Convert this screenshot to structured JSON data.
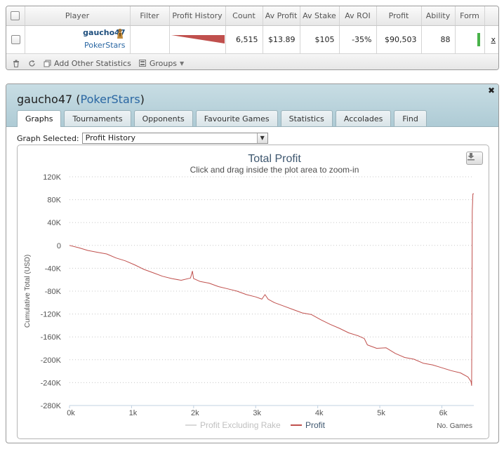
{
  "table": {
    "headers": [
      "Player",
      "Filter",
      "Profit History",
      "Count",
      "Av Profit",
      "Av Stake",
      "Av ROI",
      "Profit",
      "Ability",
      "Form"
    ],
    "row": {
      "player": "gaucho47",
      "site": "PokerStars",
      "count": "6,515",
      "av_profit": "$13.89",
      "av_stake": "$105",
      "av_roi": "-35%",
      "profit": "$90,503",
      "ability": "88",
      "remove": "x"
    }
  },
  "toolbar": {
    "add_stats_label": "Add Other Statistics",
    "groups_label": "Groups"
  },
  "panel": {
    "player": "gaucho47",
    "site": "PokerStars",
    "tabs": [
      "Graphs",
      "Tournaments",
      "Opponents",
      "Favourite Games",
      "Statistics",
      "Accolades",
      "Find"
    ],
    "active_tab": "Graphs",
    "graph_selected_label": "Graph Selected:",
    "graph_selected_value": "Profit History"
  },
  "colors": {
    "profit_line": "#c0504d",
    "excl_rake_line": "#d9d9d9",
    "form_bar": "#49b24a"
  },
  "chart_data": {
    "type": "line",
    "title": "Total Profit",
    "subtitle": "Click and drag inside the plot area to zoom-in",
    "ylabel": "Cumulative Total (USD)",
    "xlabel": "No. Games",
    "xlim": [
      0,
      6515
    ],
    "ylim": [
      -280000,
      120000
    ],
    "x_ticks": [
      0,
      1000,
      2000,
      3000,
      4000,
      5000,
      6000
    ],
    "x_tick_labels": [
      "0k",
      "1k",
      "2k",
      "3k",
      "4k",
      "5k",
      "6k"
    ],
    "y_ticks": [
      120000,
      80000,
      40000,
      0,
      -40000,
      -80000,
      -120000,
      -160000,
      -200000,
      -240000,
      -280000
    ],
    "y_tick_labels": [
      "120K",
      "80K",
      "40K",
      "0",
      "-40K",
      "-80K",
      "-120K",
      "-160K",
      "-200K",
      "-240K",
      "-280K"
    ],
    "grid": true,
    "legend_placement": "bottom",
    "series": [
      {
        "name": "Profit Excluding Rake",
        "x": [],
        "y": []
      },
      {
        "name": "Profit",
        "x": [
          0,
          150,
          300,
          450,
          600,
          750,
          900,
          1050,
          1200,
          1350,
          1500,
          1650,
          1800,
          1950,
          1980,
          2000,
          2100,
          2250,
          2400,
          2550,
          2700,
          2850,
          3000,
          3100,
          3150,
          3200,
          3300,
          3450,
          3600,
          3750,
          3900,
          4050,
          4200,
          4350,
          4500,
          4650,
          4750,
          4800,
          4950,
          5100,
          5250,
          5400,
          5550,
          5700,
          5850,
          6000,
          6150,
          6300,
          6420,
          6470,
          6480,
          6490,
          6500,
          6515
        ],
        "y": [
          0,
          -4000,
          -9000,
          -12000,
          -15000,
          -22000,
          -27000,
          -34000,
          -42000,
          -48000,
          -54000,
          -58000,
          -61000,
          -57000,
          -45000,
          -58000,
          -63000,
          -66000,
          -72000,
          -76000,
          -80000,
          -86000,
          -90000,
          -94000,
          -86000,
          -94000,
          -100000,
          -106000,
          -112000,
          -118000,
          -121000,
          -130000,
          -138000,
          -145000,
          -153000,
          -158000,
          -163000,
          -174000,
          -180000,
          -179000,
          -189000,
          -196000,
          -199000,
          -206000,
          -209000,
          -214000,
          -219000,
          -223000,
          -230000,
          -238000,
          -245000,
          60000,
          90000,
          90503
        ]
      }
    ]
  }
}
